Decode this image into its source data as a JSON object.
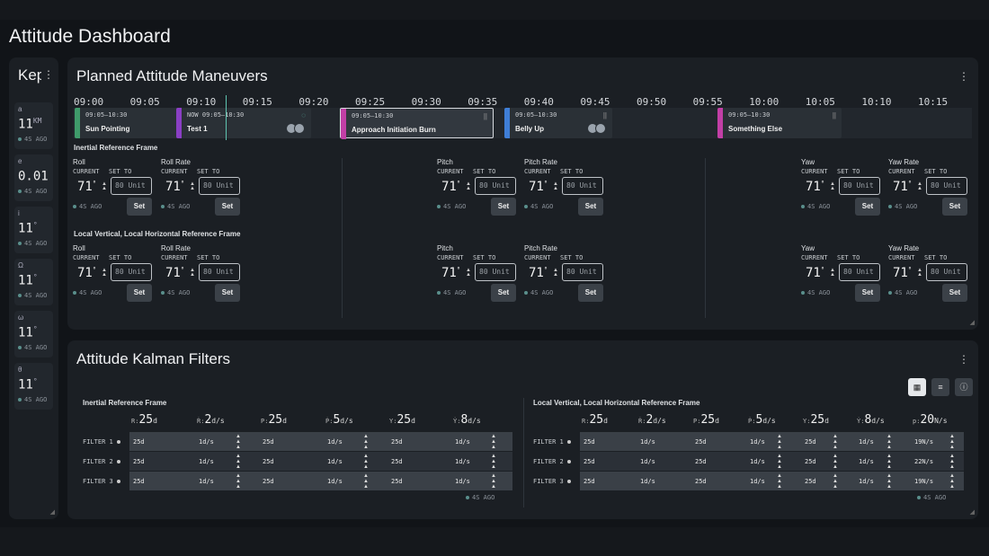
{
  "app": {
    "title": "Attitude Dashboard"
  },
  "kepler": {
    "title": "Keplerian",
    "items": [
      {
        "symbol": "a",
        "value": "11",
        "unit": "KM",
        "ago": "4S AGO"
      },
      {
        "symbol": "e",
        "value": "0.01",
        "unit": "",
        "ago": "4S AGO"
      },
      {
        "symbol": "i",
        "value": "11",
        "unit": "°",
        "ago": "4S AGO"
      },
      {
        "symbol": "Ω",
        "value": "11",
        "unit": "°",
        "ago": "4S AGO"
      },
      {
        "symbol": "ω",
        "value": "11",
        "unit": "°",
        "ago": "4S AGO"
      },
      {
        "symbol": "θ",
        "value": "11",
        "unit": "°",
        "ago": "4S AGO"
      }
    ]
  },
  "maneuvers": {
    "title": "Planned Attitude Maneuvers",
    "times": [
      "09:00",
      "09:05",
      "09:10",
      "09:15",
      "09:20",
      "09:25",
      "09:30",
      "09:35",
      "09:40",
      "09:45",
      "09:50",
      "09:55",
      "10:00",
      "10:05",
      "10:10",
      "10:15"
    ],
    "events": [
      {
        "name": "Sun Pointing",
        "time": "09:05–10:30",
        "color": "#3f9a6a",
        "status": "✓"
      },
      {
        "name": "Test 1",
        "time": "NOW 09:05–10:30",
        "color": "#8a3fc4",
        "status": "◌"
      },
      {
        "name": "Approach Initiation Burn",
        "time": "09:05–10:30",
        "color": "#c23fa6",
        "status": "||"
      },
      {
        "name": "Belly Up",
        "time": "09:05–10:30",
        "color": "#3f7ed6",
        "status": "||"
      },
      {
        "name": "Something Else",
        "time": "09:05–10:30",
        "color": "#c23fa6",
        "status": "||"
      }
    ],
    "sections": [
      {
        "title": "Inertial Reference Frame",
        "controls": [
          {
            "name": "Roll",
            "current_label": "CURRENT",
            "set_label": "SET TO",
            "current": "71",
            "unit": "°",
            "placeholder": "80 Unit",
            "ago": "4S AGO",
            "button": "Set"
          },
          {
            "name": "Roll Rate",
            "current_label": "CURRENT",
            "set_label": "SET TO",
            "current": "71",
            "unit": "°",
            "placeholder": "80 Unit",
            "ago": "4S AGO",
            "button": "Set"
          },
          {
            "name": "Pitch",
            "current_label": "CURRENT",
            "set_label": "SET TO",
            "current": "71",
            "unit": "°",
            "placeholder": "80 Unit",
            "ago": "4S AGO",
            "button": "Set"
          },
          {
            "name": "Pitch Rate",
            "current_label": "CURRENT",
            "set_label": "SET TO",
            "current": "71",
            "unit": "°",
            "placeholder": "80 Unit",
            "ago": "4S AGO",
            "button": "Set"
          },
          {
            "name": "Yaw",
            "current_label": "CURRENT",
            "set_label": "SET TO",
            "current": "71",
            "unit": "°",
            "placeholder": "80 Unit",
            "ago": "4S AGO",
            "button": "Set"
          },
          {
            "name": "Yaw Rate",
            "current_label": "CURRENT",
            "set_label": "SET TO",
            "current": "71",
            "unit": "°",
            "placeholder": "80 Unit",
            "ago": "4S AGO",
            "button": "Set"
          }
        ]
      },
      {
        "title": "Local Vertical, Local Horizontal Reference Frame",
        "controls": [
          {
            "name": "Roll",
            "current_label": "CURRENT",
            "set_label": "SET TO",
            "current": "71",
            "unit": "°",
            "placeholder": "80 Unit",
            "ago": "4S AGO",
            "button": "Set"
          },
          {
            "name": "Roll Rate",
            "current_label": "CURRENT",
            "set_label": "SET TO",
            "current": "71",
            "unit": "°",
            "placeholder": "80 Unit",
            "ago": "4S AGO",
            "button": "Set"
          },
          {
            "name": "Pitch",
            "current_label": "CURRENT",
            "set_label": "SET TO",
            "current": "71",
            "unit": "°",
            "placeholder": "80 Unit",
            "ago": "4S AGO",
            "button": "Set"
          },
          {
            "name": "Pitch Rate",
            "current_label": "CURRENT",
            "set_label": "SET TO",
            "current": "71",
            "unit": "°",
            "placeholder": "80 Unit",
            "ago": "4S AGO",
            "button": "Set"
          },
          {
            "name": "Yaw",
            "current_label": "CURRENT",
            "set_label": "SET TO",
            "current": "71",
            "unit": "°",
            "placeholder": "80 Unit",
            "ago": "4S AGO",
            "button": "Set"
          },
          {
            "name": "Yaw Rate",
            "current_label": "CURRENT",
            "set_label": "SET TO",
            "current": "71",
            "unit": "°",
            "placeholder": "80 Unit",
            "ago": "4S AGO",
            "button": "Set"
          }
        ]
      }
    ]
  },
  "filters": {
    "title": "Attitude Kalman Filters",
    "ago": "4S AGO",
    "left": {
      "title": "Inertial Reference Frame",
      "headers": [
        {
          "s": "R:",
          "v": "25",
          "u": "d"
        },
        {
          "s": "Ṙ:",
          "v": "2",
          "u": "d/s"
        },
        {
          "s": "P:",
          "v": "25",
          "u": "d"
        },
        {
          "s": "Ṗ:",
          "v": "5",
          "u": "d/s"
        },
        {
          "s": "Y:",
          "v": "25",
          "u": "d"
        },
        {
          "s": "Ẏ:",
          "v": "8",
          "u": "d/s"
        }
      ],
      "rows": [
        {
          "label": "FILTER 1",
          "cells": [
            "25d",
            "1d/s",
            "25d",
            "1d/s",
            "25d",
            "1d/s"
          ]
        },
        {
          "label": "FILTER 2",
          "cells": [
            "25d",
            "1d/s",
            "25d",
            "1d/s",
            "25d",
            "1d/s"
          ]
        },
        {
          "label": "FILTER 3",
          "cells": [
            "25d",
            "1d/s",
            "25d",
            "1d/s",
            "25d",
            "1d/s"
          ]
        }
      ]
    },
    "right": {
      "title": "Local Vertical, Local Horizontal Reference Frame",
      "headers": [
        {
          "s": "R:",
          "v": "25",
          "u": "d"
        },
        {
          "s": "Ṙ:",
          "v": "2",
          "u": "d/s"
        },
        {
          "s": "P:",
          "v": "25",
          "u": "d"
        },
        {
          "s": "Ṗ:",
          "v": "5",
          "u": "d/s"
        },
        {
          "s": "Y:",
          "v": "25",
          "u": "d"
        },
        {
          "s": "Ẏ:",
          "v": "8",
          "u": "d/s"
        },
        {
          "s": "p:",
          "v": "20",
          "u": "N/s"
        }
      ],
      "rows": [
        {
          "label": "FILTER 1",
          "cells": [
            "25d",
            "1d/s",
            "25d",
            "1d/s",
            "25d",
            "1d/s",
            "19N/s"
          ]
        },
        {
          "label": "FILTER 2",
          "cells": [
            "25d",
            "1d/s",
            "25d",
            "1d/s",
            "25d",
            "1d/s",
            "22N/s"
          ]
        },
        {
          "label": "FILTER 3",
          "cells": [
            "25d",
            "1d/s",
            "25d",
            "1d/s",
            "25d",
            "1d/s",
            "19N/s"
          ]
        }
      ]
    }
  }
}
